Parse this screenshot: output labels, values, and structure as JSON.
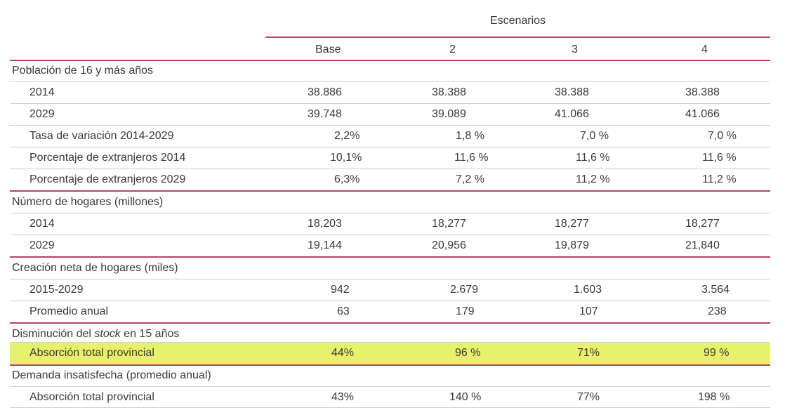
{
  "header": {
    "scenarios_label": "Escenarios",
    "columns": [
      "Base",
      "2",
      "3",
      "4"
    ]
  },
  "sections": [
    {
      "title": "Población de 16 y más años",
      "rows": [
        {
          "label": "2014",
          "values": [
            "38.886",
            "38.388",
            "38.388",
            "38.388"
          ]
        },
        {
          "label": "2029",
          "values": [
            "39.748",
            "39.089",
            "41.066",
            "41.066"
          ]
        },
        {
          "label": "Tasa de variación 2014-2029",
          "values": [
            "2,2%",
            "1,8 %",
            "7,0 %",
            "7,0 %"
          ]
        },
        {
          "label": "Porcentaje de extranjeros 2014",
          "values": [
            "10,1%",
            "11,6 %",
            "11,6 %",
            "11,6 %"
          ]
        },
        {
          "label": "Porcentaje de extranjeros 2029",
          "values": [
            "6,3%",
            "7,2 %",
            "11,2 %",
            "11,2 %"
          ]
        }
      ]
    },
    {
      "title": "Número de hogares (millones)",
      "rows": [
        {
          "label": "2014",
          "values": [
            "18,203",
            "18,277",
            "18,277",
            "18,277"
          ]
        },
        {
          "label": "2029",
          "values": [
            "19,144",
            "20,956",
            "19,879",
            "21,840"
          ]
        }
      ]
    },
    {
      "title": "Creación neta de hogares (miles)",
      "rows": [
        {
          "label": "2015-2029",
          "values": [
            "942",
            "2.679",
            "1.603",
            "3.564"
          ]
        },
        {
          "label": "Promedio anual",
          "values": [
            "63",
            "179",
            "107",
            "238"
          ]
        }
      ]
    },
    {
      "title_prefix": "Disminución del ",
      "title_italic": "stock",
      "title_suffix": " en 15 años",
      "rows": [
        {
          "label": "Absorción total provincial",
          "values": [
            "44%",
            "96 %",
            "71%",
            "99 %"
          ]
        }
      ]
    },
    {
      "title": "Demanda insatisfecha (promedio anual)",
      "rows": [
        {
          "label": "Absorción total provincial",
          "values": [
            "43%",
            "140 %",
            "77%",
            "198 %"
          ]
        }
      ]
    }
  ],
  "highlight_color": "#e6f26b",
  "rule_color": "#b0475c"
}
